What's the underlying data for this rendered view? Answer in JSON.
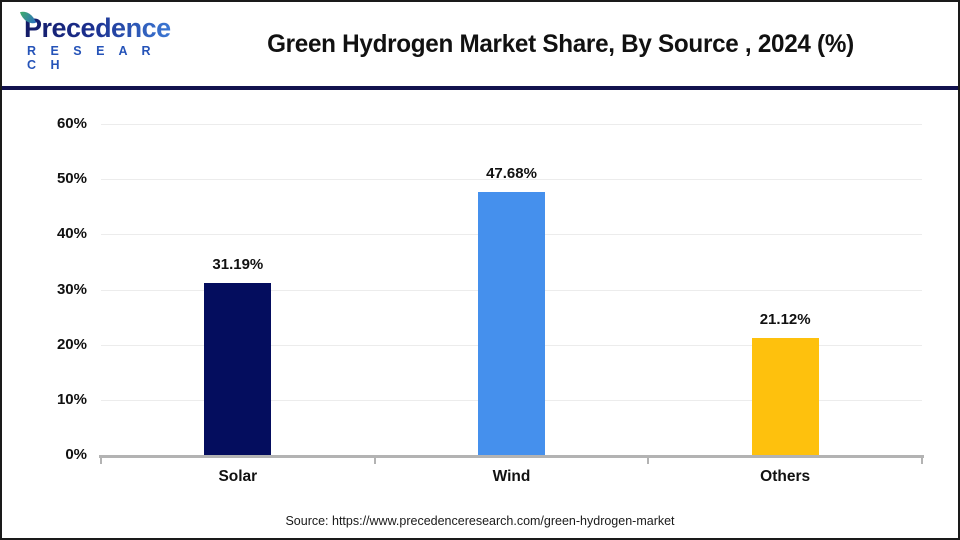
{
  "header": {
    "logo": {
      "line1": "Precedence",
      "line2": "R E S E A R C H"
    },
    "title": "Green Hydrogen Market Share, By Source , 2024 (%)"
  },
  "chart_data": {
    "type": "bar",
    "title": "Green Hydrogen Market Share, By Source , 2024 (%)",
    "categories": [
      "Solar",
      "Wind",
      "Others"
    ],
    "values": [
      31.19,
      47.68,
      21.12
    ],
    "value_labels": [
      "31.19%",
      "47.68%",
      "21.12%"
    ],
    "bar_colors": [
      "#040d5e",
      "#4590ed",
      "#fec10d"
    ],
    "xlabel": "",
    "ylabel": "",
    "ylim": [
      0,
      60
    ],
    "ytick_step": 10,
    "ytick_labels": [
      "0%",
      "10%",
      "20%",
      "30%",
      "40%",
      "50%",
      "60%"
    ],
    "grid": true,
    "legend": false
  },
  "footer": {
    "source": "Source: https://www.precedenceresearch.com/green-hydrogen-market"
  },
  "colors": {
    "solar_bar": "#040d5e",
    "wind_bar": "#4590ed",
    "others_bar": "#fec10d",
    "separator": "#12124e",
    "gridline": "#ececec",
    "axis": "#b3b3b3",
    "title_text": "#111111",
    "logo_navy": "#131b66",
    "logo_blue": "#2553b8"
  }
}
